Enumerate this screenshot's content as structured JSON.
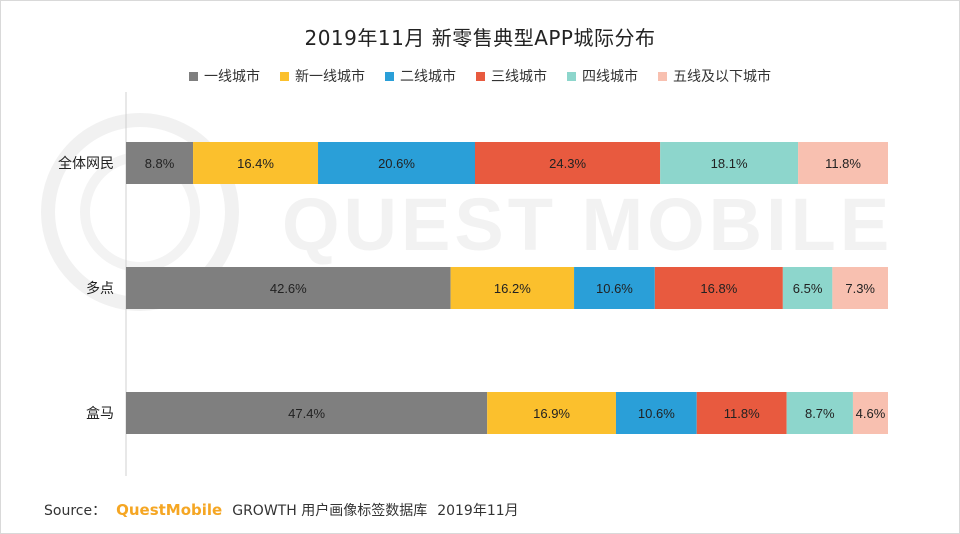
{
  "chart_data": {
    "type": "bar",
    "orientation": "horizontal",
    "stacked": true,
    "percent_stacked": true,
    "title": "2019年11月 新零售典型APP城际分布",
    "categories": [
      "全体网民",
      "多点",
      "盒马"
    ],
    "series": [
      {
        "name": "一线城市",
        "color": "#7f7f7f",
        "values": [
          8.8,
          42.6,
          47.4
        ]
      },
      {
        "name": "新一线城市",
        "color": "#fbc02d",
        "values": [
          16.4,
          16.2,
          16.9
        ]
      },
      {
        "name": "二线城市",
        "color": "#2a9fd8",
        "values": [
          20.6,
          10.6,
          10.6
        ]
      },
      {
        "name": "三线城市",
        "color": "#e85a3f",
        "values": [
          24.3,
          16.8,
          11.8
        ]
      },
      {
        "name": "四线城市",
        "color": "#8dd6cc",
        "values": [
          18.1,
          6.5,
          8.7
        ]
      },
      {
        "name": "五线及以下城市",
        "color": "#f8c0b0",
        "values": [
          11.8,
          7.3,
          4.6
        ]
      }
    ],
    "labels": [
      [
        "8.8%",
        "16.4%",
        "20.6%",
        "24.3%",
        "18.1%",
        "11.8%"
      ],
      [
        "42.6%",
        "16.2%",
        "10.6%",
        "16.8%",
        "6.5%",
        "7.3%"
      ],
      [
        "47.4%",
        "16.9%",
        "10.6%",
        "11.8%",
        "8.7%",
        "4.6%"
      ]
    ],
    "xlim": [
      0,
      100
    ],
    "legend_position": "top"
  },
  "watermark": "QUEST MOBILE",
  "source": {
    "prefix": "Source：",
    "brand": "QuestMobile",
    "text": "GROWTH 用户画像标签数据库",
    "date": "2019年11月"
  }
}
